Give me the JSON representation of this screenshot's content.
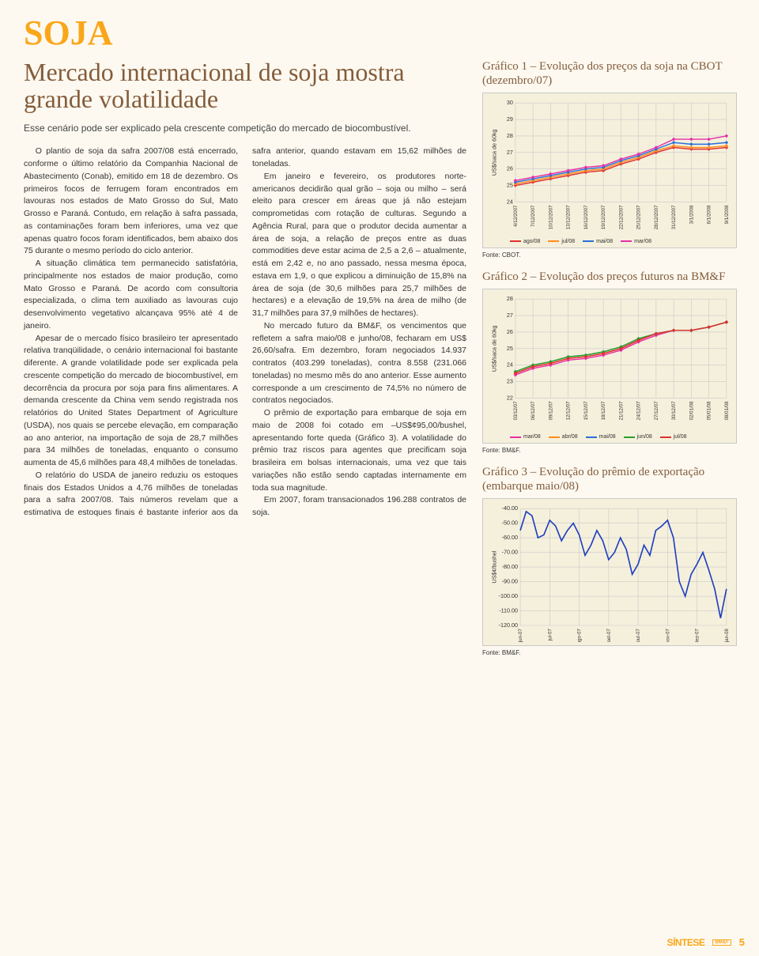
{
  "page": {
    "category": "SOJA",
    "headline": "Mercado internacional de soja mostra grande volatilidade",
    "subhead": "Esse cenário pode ser explicado pela crescente competição do mercado de biocombustível.",
    "body_paragraphs": [
      "O plantio de soja da safra 2007/08 está encerrado, conforme o último relatório da Companhia Nacional de Abastecimento (Conab), emitido em 18 de dezembro. Os primeiros focos de ferrugem foram encontrados em lavouras nos estados de Mato Grosso do Sul, Mato Grosso e Paraná. Contudo, em relação à safra passada, as contaminações foram bem inferiores, uma vez que apenas quatro focos foram identificados, bem abaixo dos 75 durante o mesmo período do ciclo anterior.",
      "A situação climática tem permanecido satisfatória, principalmente nos estados de maior produção, como Mato Grosso e Paraná. De acordo com consultoria especializada, o clima tem auxiliado as lavouras cujo desenvolvimento vegetativo alcançava 95% até 4 de janeiro.",
      "Apesar de o mercado físico brasileiro ter apresentado relativa tranqüilidade, o cenário internacional foi bastante diferente. A grande volatilidade pode ser explicada pela crescente competição do mercado de biocombustível, em decorrência da procura por soja para fins alimentares. A demanda crescente da China vem sendo registrada nos relatórios do United States Department of Agriculture (USDA), nos quais se percebe elevação, em comparação ao ano anterior, na importação de soja de 28,7 milhões para 34 milhões de toneladas, enquanto o consumo aumenta de 45,6 milhões para 48,4 milhões de toneladas.",
      "O relatório do USDA de janeiro reduziu os estoques finais dos Estados Unidos a 4,76 milhões de toneladas para a safra 2007/08. Tais números revelam que a estimativa de estoques finais é bastante inferior aos da safra anterior, quando estavam em 15,62 milhões de toneladas.",
      "Em janeiro e fevereiro, os produtores norte-americanos decidirão qual grão – soja ou milho – será eleito para crescer em áreas que já não estejam comprometidas com rotação de culturas. Segundo a Agência Rural, para que o produtor decida aumentar a área de soja, a relação de preços entre as duas commodities deve estar acima de 2,5 a 2,6 – atualmente, está em 2,42 e, no ano passado, nessa mesma época, estava em 1,9, o que explicou a diminuição de 15,8% na área de soja (de 30,6 milhões para 25,7 milhões de hectares) e a elevação de 19,5% na área de milho (de 31,7 milhões para 37,9 milhões de hectares).",
      "No mercado futuro da BM&F, os vencimentos que refletem a safra maio/08 e junho/08, fecharam em US$ 26,60/safra. Em dezembro, foram negociados 14.937 contratos (403.299 toneladas), contra 8.558 (231.066 toneladas) no mesmo mês do ano anterior. Esse aumento corresponde a um crescimento de 74,5% no número de contratos negociados.",
      "O prêmio de exportação para embarque de soja em maio de 2008 foi cotado em –US$¢95,00/bushel, apresentando forte queda (Gráfico 3). A volatilidade do prêmio traz riscos para agentes que precificam soja brasileira em bolsas internacionais, uma vez que tais variações não estão sendo captadas internamente em toda sua magnitude.",
      "Em 2007, foram transacionados 196.288 contratos de soja."
    ],
    "page_number": "5",
    "footer_logo": "SÍNTESE",
    "footer_sub": "BM&F"
  },
  "chart1": {
    "type": "line",
    "title": "Gráfico 1 – Evolução dos preços da soja na CBOT (dezembro/07)",
    "ylabel": "US$/saca de 60kg",
    "ylim": [
      24,
      30
    ],
    "ytick_step": 1,
    "x_labels": [
      "4/12/2007",
      "7/12/2007",
      "10/12/2007",
      "13/12/2007",
      "16/12/2007",
      "19/12/2007",
      "22/12/2007",
      "25/12/2007",
      "28/12/2007",
      "31/12/2007",
      "3/1/2008",
      "6/1/2008",
      "9/1/2008"
    ],
    "series": [
      {
        "name": "ago/08",
        "color": "#e03030",
        "values": [
          25.0,
          25.2,
          25.4,
          25.6,
          25.8,
          25.9,
          26.3,
          26.6,
          27.0,
          27.3,
          27.2,
          27.2,
          27.3
        ]
      },
      {
        "name": "jul/08",
        "color": "#ff8c1a",
        "values": [
          25.1,
          25.3,
          25.5,
          25.7,
          25.9,
          26.0,
          26.4,
          26.7,
          27.1,
          27.4,
          27.3,
          27.3,
          27.4
        ]
      },
      {
        "name": "mai/08",
        "color": "#2a6fd6",
        "values": [
          25.2,
          25.4,
          25.6,
          25.8,
          26.0,
          26.1,
          26.5,
          26.8,
          27.2,
          27.6,
          27.5,
          27.5,
          27.6
        ]
      },
      {
        "name": "mar/08",
        "color": "#e72ea8",
        "values": [
          25.3,
          25.5,
          25.7,
          25.9,
          26.1,
          26.2,
          26.6,
          26.9,
          27.3,
          27.8,
          27.8,
          27.8,
          28.0
        ]
      }
    ],
    "grid_color": "#c9c9c9",
    "background_color": "#f5f0dc",
    "label_fontsize": 7,
    "tick_fontsize": 7,
    "source": "Fonte: CBOT."
  },
  "chart2": {
    "type": "line",
    "title": "Gráfico 2 – Evolução dos preços futuros na BM&F",
    "ylabel": "US$/saca de 60kg",
    "ylim": [
      22,
      28
    ],
    "ytick_step": 1,
    "x_labels": [
      "03/12/07",
      "06/12/07",
      "09/12/07",
      "12/12/07",
      "15/12/07",
      "18/12/07",
      "21/12/07",
      "24/12/07",
      "27/12/07",
      "30/12/07",
      "02/01/08",
      "05/01/08",
      "08/01/08"
    ],
    "series": [
      {
        "name": "mar/08",
        "color": "#e72ea8",
        "values": [
          23.4,
          23.8,
          24.0,
          24.3,
          24.4,
          24.6,
          24.9,
          25.4,
          25.8,
          26.1,
          26.1,
          26.3,
          26.6
        ]
      },
      {
        "name": "abr/08",
        "color": "#ff8c1a",
        "values": [
          23.5,
          23.9,
          24.1,
          24.4,
          24.5,
          24.7,
          25.0,
          25.5,
          25.9,
          26.1,
          26.1,
          26.3,
          26.6
        ]
      },
      {
        "name": "mai/08",
        "color": "#2a6fd6",
        "values": [
          23.6,
          24.0,
          24.2,
          24.5,
          24.6,
          24.8,
          25.1,
          25.6,
          25.9,
          26.1,
          26.1,
          26.3,
          26.6
        ]
      },
      {
        "name": "jun/08",
        "color": "#2aa02a",
        "values": [
          23.6,
          24.0,
          24.2,
          24.5,
          24.6,
          24.8,
          25.1,
          25.6,
          25.9,
          26.1,
          26.1,
          26.3,
          26.6
        ]
      },
      {
        "name": "jul/08",
        "color": "#e03030",
        "values": [
          23.5,
          23.9,
          24.1,
          24.4,
          24.5,
          24.7,
          25.0,
          25.5,
          25.9,
          26.1,
          26.1,
          26.3,
          26.6
        ]
      }
    ],
    "grid_color": "#c9c9c9",
    "background_color": "#f5f0dc",
    "label_fontsize": 7,
    "tick_fontsize": 7,
    "source": "Fonte: BM&F."
  },
  "chart3": {
    "type": "line",
    "title": "Gráfico 3 – Evolução do prêmio de exportação (embarque maio/08)",
    "ylabel": "US$¢/bushel",
    "ylim": [
      -120,
      -40
    ],
    "ytick_step": 10,
    "x_labels": [
      "jun-07",
      "jul-07",
      "ago-07",
      "set-07",
      "out-07",
      "nov-07",
      "dez-07",
      "jan-08"
    ],
    "series": [
      {
        "name": "premio",
        "color": "#1f3fbf",
        "values": [
          -55,
          -42,
          -45,
          -60,
          -58,
          -48,
          -52,
          -62,
          -55,
          -50,
          -58,
          -72,
          -65,
          -55,
          -62,
          -75,
          -70,
          -60,
          -68,
          -85,
          -78,
          -65,
          -72,
          -55,
          -52,
          -48,
          -60,
          -90,
          -100,
          -85,
          -78,
          -70,
          -82,
          -95,
          -115,
          -95
        ]
      }
    ],
    "grid_color": "#c9c9c9",
    "background_color": "#f5f0dc",
    "label_fontsize": 7,
    "tick_fontsize": 7,
    "source": "Fonte: BM&F."
  }
}
